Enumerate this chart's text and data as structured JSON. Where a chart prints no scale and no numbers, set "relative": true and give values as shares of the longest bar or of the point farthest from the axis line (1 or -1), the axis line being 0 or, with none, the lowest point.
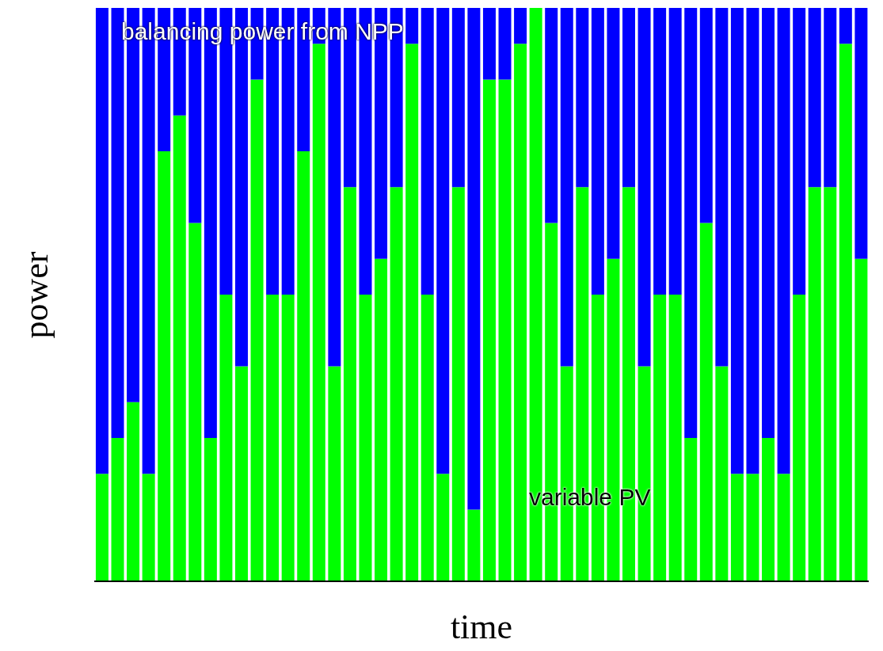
{
  "chart_data": {
    "type": "bar",
    "stacked": true,
    "relative": true,
    "xlabel": "time",
    "ylabel": "power",
    "categories": [
      null,
      null,
      null,
      null,
      null,
      null,
      null,
      null,
      null,
      null,
      null,
      null,
      null,
      null,
      null,
      null,
      null,
      null,
      null,
      null,
      null,
      null,
      null,
      null,
      null,
      null,
      null,
      null,
      null,
      null,
      null,
      null,
      null,
      null,
      null,
      null,
      null,
      null,
      null,
      null,
      null,
      null,
      null,
      null,
      null,
      null,
      null,
      null,
      null,
      null
    ],
    "series": [
      {
        "name": "variable PV",
        "color": "#00ff00",
        "values": [
          0.1875,
          0.25,
          0.3125,
          0.1875,
          0.75,
          0.8125,
          0.625,
          0.25,
          0.5,
          0.375,
          0.875,
          0.5,
          0.5,
          0.75,
          0.9375,
          0.375,
          0.6875,
          0.5,
          0.5625,
          0.6875,
          0.9375,
          0.5,
          0.1875,
          0.6875,
          0.125,
          0.875,
          0.875,
          0.9375,
          1,
          0.625,
          0.375,
          0.6875,
          0.5,
          0.5625,
          0.6875,
          0.375,
          0.5,
          0.5,
          0.25,
          0.625,
          0.375,
          0.1875,
          0.1875,
          0.25,
          0.1875,
          0.5,
          0.6875,
          0.6875,
          0.9375,
          0.5625
        ]
      },
      {
        "name": "balancing power from NPP",
        "color": "#0000ff",
        "values": [
          0.8125,
          0.75,
          0.6875,
          0.8125,
          0.25,
          0.1875,
          0.375,
          0.75,
          0.5,
          0.625,
          0.125,
          0.5,
          0.5,
          0.25,
          0.0625,
          0.625,
          0.3125,
          0.5,
          0.4375,
          0.3125,
          0.0625,
          0.5,
          0.8125,
          0.3125,
          0.875,
          0.125,
          0.125,
          0.0625,
          0,
          0.375,
          0.625,
          0.3125,
          0.5,
          0.4375,
          0.3125,
          0.625,
          0.5,
          0.5,
          0.75,
          0.375,
          0.625,
          0.8125,
          0.8125,
          0.75,
          0.8125,
          0.5,
          0.3125,
          0.3125,
          0.0625,
          0.4375
        ]
      }
    ]
  }
}
